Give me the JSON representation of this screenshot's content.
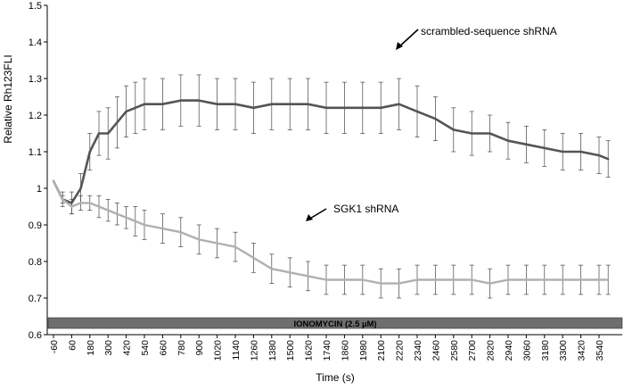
{
  "chart_data": {
    "type": "line",
    "title": "",
    "xlabel": "Time (s)",
    "ylabel": "Relative Rh123FLI",
    "xlim": [
      -60,
      3600
    ],
    "ylim": [
      0.6,
      1.5
    ],
    "y_ticks": [
      "0.6",
      "0.7",
      "0.8",
      "0.9",
      "1",
      "1.1",
      "1.2",
      "1.3",
      "1.4",
      "1.5"
    ],
    "x_ticks": [
      "-60",
      "60",
      "180",
      "300",
      "420",
      "540",
      "660",
      "780",
      "900",
      "1020",
      "1140",
      "1260",
      "1380",
      "1500",
      "1620",
      "1740",
      "1860",
      "1980",
      "2100",
      "2220",
      "2340",
      "2460",
      "2580",
      "2700",
      "2820",
      "2940",
      "3060",
      "3180",
      "3300",
      "3420",
      "3540"
    ],
    "grid": false,
    "legend": "none",
    "colors": {
      "scrambled": "#555555",
      "sgk1": "#b0b0b0",
      "error_bars": "#444444",
      "bar_fill": "#6e6e6e"
    },
    "treatment_bar": {
      "label": "IONOMYCIN (2.5 µM)"
    },
    "annotations": [
      {
        "text": "scrambled-sequence shRNA",
        "target_x": 2040,
        "target_y": 1.34
      },
      {
        "text": "SGK1 shRNA",
        "target_x": 1500,
        "target_y": 0.82
      }
    ],
    "series": [
      {
        "name": "scrambled-sequence shRNA",
        "x": [
          -60,
          0,
          60,
          120,
          180,
          240,
          300,
          360,
          420,
          480,
          540,
          660,
          780,
          900,
          1020,
          1140,
          1260,
          1380,
          1500,
          1620,
          1740,
          1860,
          1980,
          2100,
          2220,
          2340,
          2460,
          2580,
          2700,
          2820,
          2940,
          3060,
          3180,
          3300,
          3420,
          3540,
          3600
        ],
        "y": [
          1.02,
          0.97,
          0.96,
          1.0,
          1.1,
          1.15,
          1.15,
          1.18,
          1.21,
          1.22,
          1.23,
          1.23,
          1.24,
          1.24,
          1.23,
          1.23,
          1.22,
          1.23,
          1.23,
          1.23,
          1.22,
          1.22,
          1.22,
          1.22,
          1.23,
          1.21,
          1.19,
          1.16,
          1.15,
          1.15,
          1.13,
          1.12,
          1.11,
          1.1,
          1.1,
          1.09,
          1.08
        ],
        "error": [
          0.0,
          0.02,
          0.03,
          0.04,
          0.05,
          0.06,
          0.07,
          0.07,
          0.07,
          0.07,
          0.07,
          0.07,
          0.07,
          0.07,
          0.07,
          0.07,
          0.07,
          0.07,
          0.07,
          0.07,
          0.07,
          0.07,
          0.07,
          0.07,
          0.07,
          0.07,
          0.06,
          0.06,
          0.06,
          0.05,
          0.05,
          0.05,
          0.05,
          0.05,
          0.05,
          0.05,
          0.05
        ]
      },
      {
        "name": "SGK1 shRNA",
        "x": [
          -60,
          0,
          60,
          120,
          180,
          240,
          300,
          360,
          420,
          480,
          540,
          660,
          780,
          900,
          1020,
          1140,
          1260,
          1380,
          1500,
          1620,
          1740,
          1860,
          1980,
          2100,
          2220,
          2340,
          2460,
          2580,
          2700,
          2820,
          2940,
          3060,
          3180,
          3300,
          3420,
          3540,
          3600
        ],
        "y": [
          1.02,
          0.97,
          0.95,
          0.96,
          0.96,
          0.95,
          0.94,
          0.93,
          0.92,
          0.91,
          0.9,
          0.89,
          0.88,
          0.86,
          0.85,
          0.84,
          0.81,
          0.78,
          0.77,
          0.76,
          0.75,
          0.75,
          0.75,
          0.74,
          0.74,
          0.75,
          0.75,
          0.75,
          0.75,
          0.74,
          0.75,
          0.75,
          0.75,
          0.75,
          0.75,
          0.75,
          0.75
        ],
        "error": [
          0.0,
          0.01,
          0.02,
          0.02,
          0.02,
          0.03,
          0.03,
          0.03,
          0.03,
          0.04,
          0.04,
          0.04,
          0.04,
          0.04,
          0.04,
          0.04,
          0.04,
          0.04,
          0.04,
          0.04,
          0.04,
          0.04,
          0.04,
          0.04,
          0.04,
          0.04,
          0.04,
          0.04,
          0.04,
          0.04,
          0.04,
          0.04,
          0.04,
          0.04,
          0.04,
          0.04,
          0.04
        ]
      }
    ]
  }
}
